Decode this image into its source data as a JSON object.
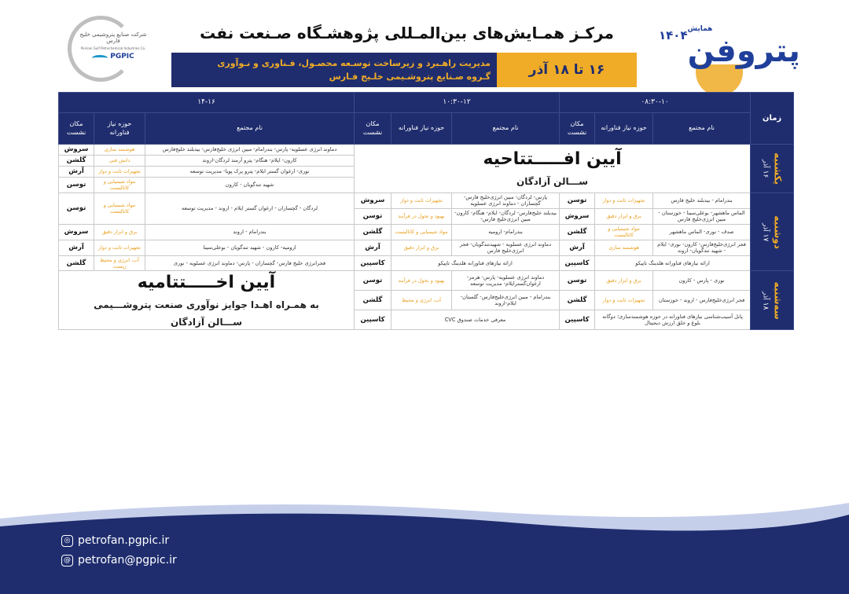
{
  "header": {
    "brand_prefix": "همایش",
    "brand_name": "پتروفن",
    "brand_year": "۱۴۰۴",
    "title": "مرکـز همـایش‌های بین‌المـللی پژوهشـگاه صـنعت نفت",
    "subtitle_1": "مدیریت راهـبرد و زیرساخت توسـعه محصـول، فـناوری و نـوآوری",
    "subtitle_2": "گـروه صـنایع پتروشـیمی خلـیج فـارس",
    "date_range": "۱۶ تا ۱۸ آذر",
    "logo_fa": "شرکت صنایع پتروشیمی خلیج فارس",
    "logo_en": "Persian Gulf Petrochemical Industries Co.",
    "logo_abbr": "PGPIC"
  },
  "colors": {
    "navy": "#1f2d6e",
    "accent": "#f0ac27"
  },
  "schedule": {
    "time_header": "زمان",
    "slots": [
      "۰۸:۳۰-۱۰",
      "۱۰:۳۰-۱۲",
      "۱۴-۱۶"
    ],
    "col_name": "نام مجتمع",
    "col_area": "حوزه نیاز فناورانه",
    "col_loc": "مکان نشست",
    "days": [
      {
        "name": "یکشنبه",
        "date": "۱۶ آذر",
        "opening": {
          "title": "آیین افـــــتتاحیه",
          "hall": "ســـالن آزادگان"
        },
        "slots": [
          [],
          [],
          [
            {
              "name": "دماوند انرژی عسلویه- پارس- بندرامام- مبین انرژی خلیج‌فارس- بیدبلند خلیج‌فارس",
              "area": "هوشمند سازی",
              "loc": "سروش"
            },
            {
              "name": "کارون- ایلام- هنگام- پترو آرمند لردگان-اروند",
              "area": "دانش فنی",
              "loc": "گلشن"
            },
            {
              "name": "نوری- ارغوان گستر ایلام- پترو پرک پویا- مدیریت توسعه",
              "area": "تجهیزات ثابت و دوار",
              "loc": "آرش"
            },
            {
              "name": "شهید تندگویان - کارون",
              "area": "مواد شیمیایی و کاتالیست",
              "loc": "توسن"
            }
          ]
        ]
      },
      {
        "name": "دوشنبه",
        "date": "۱۷ آذر",
        "slots": [
          [
            {
              "name": "بندرامام - بیدبلند خلیج فارس",
              "area": "تجهیزات ثابت و دوار",
              "loc": "توسن"
            },
            {
              "name": "الماس ماهشهر- بوعلی‌سینا - خوزستان - مبین انرژی‌خلیج فارس",
              "area": "برق و ابزار دقیق",
              "loc": "سروش"
            },
            {
              "name": "صدف - نوری- الماس ماهشهر",
              "area": "مواد شیمیایی و کاتالیست",
              "loc": "گلشن"
            },
            {
              "name": "فجر انرژی‌خلیج‌فارس- کارون- نوری- ایلام - شهید تندگویان- اروند",
              "area": "هوشمند سازی",
              "loc": "آرش"
            },
            {
              "name": "ارائه نیازهای فناورانه هلدینگ تاپیکو",
              "loc": "کاسپین"
            }
          ],
          [
            {
              "name": "پارس- لردگان- مبین انرژی‌خلیج فارس- گچساران - دماوند انرژی عسلویه",
              "area": "تجهیزات ثابت و دوار",
              "loc": "سروش"
            },
            {
              "name": "بیدبلند خلیج‌فارس- لردگان- ایلام- هنگام- کارون- مبین انرژی‌خلیج فارس-",
              "area": "بهبود و تحول در فرآیند",
              "loc": "توسن"
            },
            {
              "name": "بندرامام- ارومیه",
              "area": "مواد شیمیایی و کاتالیست",
              "loc": "گلشن"
            },
            {
              "name": "دماوند انرژی عسلویه - شهیدتندگویان- فجر انرژی‌خلیج فارس",
              "area": "برق و ابزار دقیق",
              "loc": "آرش"
            },
            {
              "name": "ارائه نیازهای فناورانه هلدینگ تاپیکو",
              "loc": "کاسپین"
            }
          ],
          [
            {
              "name": "لردگان - گچساران - ارغوان گستر ایلام - اروند - مدیریت توسعه",
              "area": "مواد شیمیایی و کاتالیست",
              "loc": "توسن"
            },
            {
              "name": "بندرامام - اروند",
              "area": "برق و ابزار دقیق",
              "loc": "سروش"
            },
            {
              "name": "ارومیه- کارون - شهید تندگویان - بوعلی‌سینا",
              "area": "تجهیزات ثابت و دوار",
              "loc": "آرش"
            },
            {
              "name": "فجرانرژی خلیج فارس- گچساران - پارس- دماوند انرژی عسلویه - نوری",
              "area": "آب، انرژی و محیط زیست",
              "loc": "گلشن"
            }
          ]
        ]
      },
      {
        "name": "سه‌شنبه",
        "date": "۱۸ آذر",
        "closing": {
          "title": "آیین اخـــــتتامیه",
          "subtitle": "به همـراه اهـدا جوایز نوآوری صنعت پتروشـــیمی",
          "hall": "ســـالن آزادگان"
        },
        "slots": [
          [
            {
              "name": "نوری - پارس - کارون",
              "area": "برق و ابزار دقیق",
              "loc": "توسن"
            },
            {
              "name": "فجر انرژی‌خلیج‌فارس - اروند - خوزستان",
              "area": "تجهیزات ثابت و دوار",
              "loc": "گلشن"
            },
            {
              "name": "پانل آسیب‌شناسی نیازهای فناورانه در حوزه هوشمندسازی؛ دوگانه بلوغ و خلق ارزش دیجیتال",
              "loc": "کاسپین"
            }
          ],
          [
            {
              "name": "دماوند انرژی عسلویه- پارس- هرمز- ارغوان‌گستر‌ایلام- مدیریت توسعه",
              "area": "بهبود و تحول در فرآیند",
              "loc": "توسن"
            },
            {
              "name": "بندرامام - مبین انرژی‌خلیج‌فارس- گلستان- ایلام-اروند",
              "area": "آب، انرژی و محیط",
              "loc": "گلشن"
            },
            {
              "name": "معرفی خدمات صندوق CVC",
              "loc": "کاسپین"
            }
          ],
          []
        ]
      }
    ]
  },
  "footer": {
    "website": "petrofan.pgpic.ir",
    "email": "petrofan@pgpic.ir",
    "website_icon": "web-icon",
    "email_icon": "email-icon"
  }
}
